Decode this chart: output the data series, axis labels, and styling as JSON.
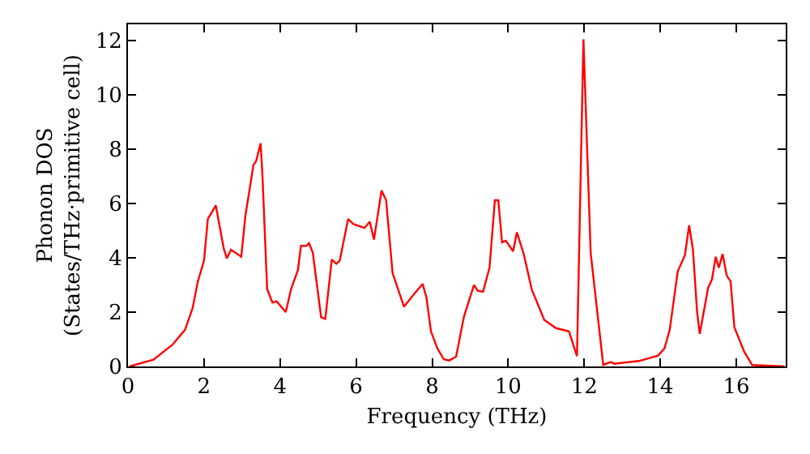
{
  "chart_data": {
    "type": "line",
    "xlabel": "Frequency (THz)",
    "ylabel": "Phonon DOS\n(States/THz·primitive cell)",
    "x": [
      0.04,
      0.67,
      1.17,
      1.5,
      1.7,
      1.84,
      2.0,
      2.1,
      2.31,
      2.52,
      2.6,
      2.71,
      2.98,
      3.09,
      3.3,
      3.37,
      3.49,
      3.54,
      3.66,
      3.8,
      3.91,
      4.15,
      4.29,
      4.47,
      4.55,
      4.69,
      4.76,
      4.86,
      5.08,
      5.19,
      5.36,
      5.48,
      5.57,
      5.79,
      5.93,
      6.22,
      6.36,
      6.47,
      6.67,
      6.79,
      6.96,
      7.26,
      7.43,
      7.57,
      7.75,
      7.85,
      7.97,
      8.14,
      8.31,
      8.45,
      8.63,
      8.84,
      9.1,
      9.2,
      9.34,
      9.51,
      9.65,
      9.74,
      9.84,
      9.94,
      10.13,
      10.23,
      10.41,
      10.62,
      10.95,
      11.26,
      11.43,
      11.6,
      11.81,
      11.98,
      12.17,
      12.5,
      12.7,
      12.8,
      13.44,
      13.94,
      14.11,
      14.25,
      14.46,
      14.65,
      14.76,
      14.86,
      14.97,
      15.04,
      15.26,
      15.36,
      15.46,
      15.54,
      15.64,
      15.75,
      15.85,
      15.95,
      16.21,
      16.42,
      17.27
    ],
    "series": [
      {
        "color": "#ff0000",
        "values": [
          0,
          0.25,
          0.8,
          1.35,
          2.15,
          3.14,
          3.9,
          5.43,
          5.93,
          4.34,
          3.98,
          4.3,
          4.04,
          5.57,
          7.42,
          7.56,
          8.22,
          6.93,
          2.85,
          2.35,
          2.4,
          2.0,
          2.85,
          3.55,
          4.44,
          4.44,
          4.54,
          4.2,
          1.81,
          1.75,
          3.94,
          3.78,
          3.9,
          5.43,
          5.24,
          5.1,
          5.33,
          4.67,
          6.48,
          6.12,
          3.44,
          2.2,
          2.5,
          2.74,
          3.04,
          2.54,
          1.29,
          0.66,
          0.26,
          0.22,
          0.36,
          1.85,
          3.0,
          2.79,
          2.75,
          3.64,
          6.12,
          6.12,
          4.57,
          4.63,
          4.24,
          4.94,
          4.14,
          2.84,
          1.71,
          1.41,
          1.35,
          1.29,
          0.38,
          12.05,
          4.18,
          0.06,
          0.16,
          0.1,
          0.2,
          0.4,
          0.66,
          1.35,
          3.5,
          4.1,
          5.2,
          4.3,
          2.0,
          1.2,
          2.9,
          3.2,
          4.04,
          3.64,
          4.14,
          3.34,
          3.14,
          1.44,
          0.54,
          0.05,
          0
        ]
      }
    ],
    "xlim": [
      0,
      17.3
    ],
    "ylim": [
      0,
      12.6
    ],
    "xticks": [
      0,
      2,
      4,
      6,
      8,
      10,
      12,
      14,
      16
    ],
    "yticks": [
      0,
      2,
      4,
      6,
      8,
      10,
      12
    ],
    "marker": "none",
    "line_style": "solid"
  }
}
